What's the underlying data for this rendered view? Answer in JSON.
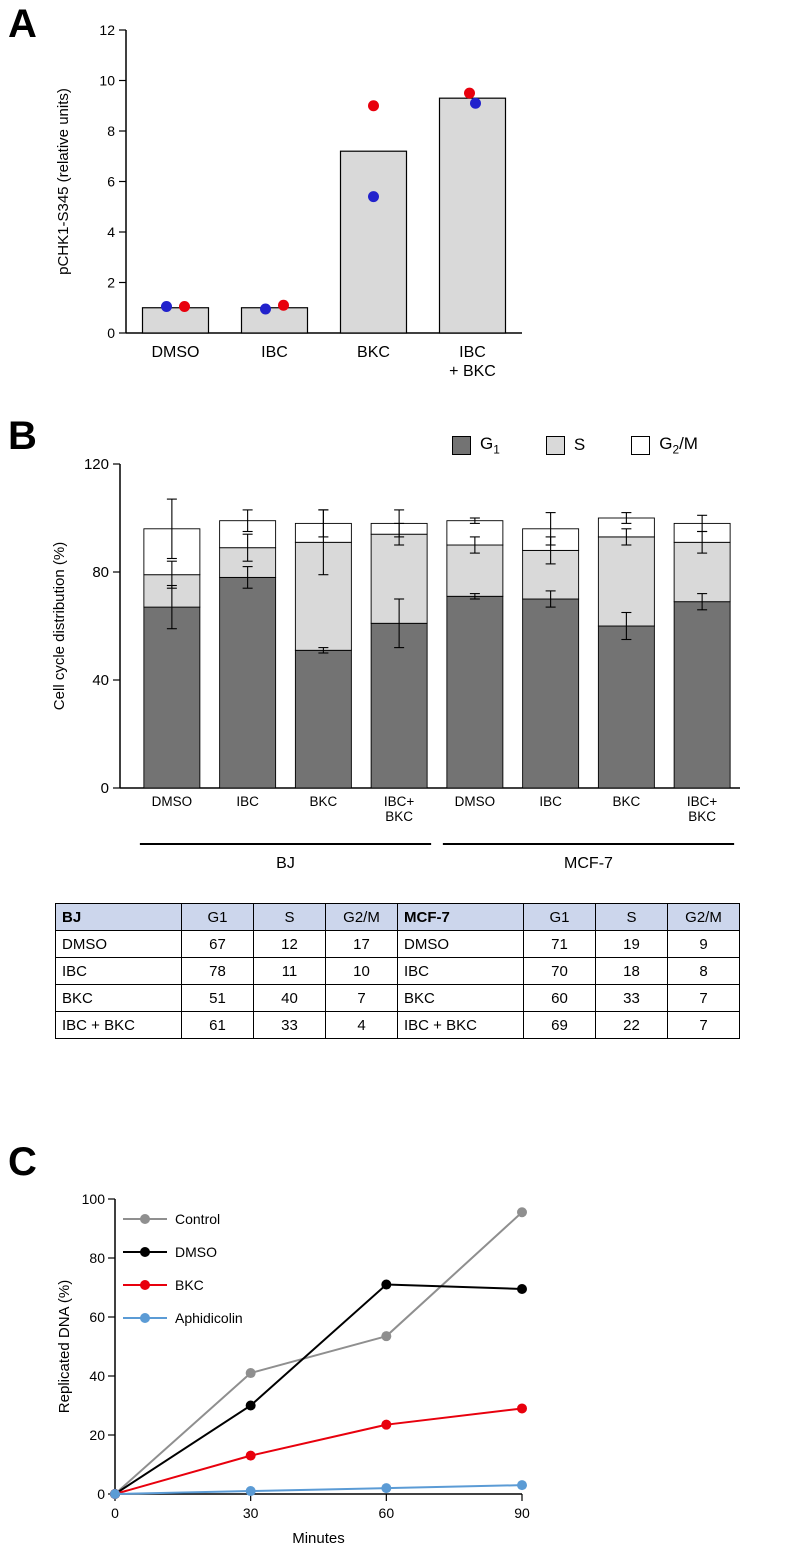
{
  "figure": {
    "panels": {
      "a": {
        "label": "A",
        "chart_data": {
          "type": "bar",
          "ylabel": "pCHK1-S345 (relative units)",
          "ylim": [
            0,
            12
          ],
          "yticks": [
            0,
            2,
            4,
            6,
            8,
            10,
            12
          ],
          "categories": [
            "DMSO",
            "IBC",
            "BKC",
            "IBC\n+ BKC"
          ],
          "values": [
            1.0,
            1.0,
            7.2,
            9.3
          ],
          "bar_color": "#d9d9d9",
          "bar_border": "#000000",
          "points": [
            {
              "cat": 0,
              "color": "#2222cc",
              "value": 1.05,
              "dx": -9
            },
            {
              "cat": 0,
              "color": "#e8000d",
              "value": 1.05,
              "dx": 9
            },
            {
              "cat": 1,
              "color": "#2222cc",
              "value": 0.95,
              "dx": -9
            },
            {
              "cat": 1,
              "color": "#e8000d",
              "value": 1.1,
              "dx": 9
            },
            {
              "cat": 2,
              "color": "#e8000d",
              "value": 9.0,
              "dx": 0
            },
            {
              "cat": 2,
              "color": "#2222cc",
              "value": 5.4,
              "dx": 0
            },
            {
              "cat": 3,
              "color": "#e8000d",
              "value": 9.5,
              "dx": -3
            },
            {
              "cat": 3,
              "color": "#2222cc",
              "value": 9.1,
              "dx": 3
            }
          ]
        }
      },
      "b": {
        "label": "B",
        "legend": {
          "items": [
            {
              "base": "G",
              "sub": "1",
              "rest": "",
              "color": "#737373"
            },
            {
              "base": "S",
              "sub": "",
              "rest": "",
              "color": "#d9d9d9"
            },
            {
              "base": "G",
              "sub": "2",
              "rest": "/M",
              "color": "#ffffff"
            }
          ]
        },
        "chart_data": {
          "type": "stacked-bar",
          "ylabel": "Cell cycle distribution (%)",
          "ylim": [
            0,
            120
          ],
          "yticks": [
            0,
            40,
            80,
            120
          ],
          "segment_names": [
            "G1",
            "S",
            "G2/M"
          ],
          "segment_colors": [
            "#737373",
            "#d9d9d9",
            "#ffffff"
          ],
          "groups": [
            {
              "name": "BJ",
              "categories": [
                "DMSO",
                "IBC",
                "BKC",
                "IBC+\nBKC"
              ],
              "values": [
                [
                  67,
                  12,
                  17
                ],
                [
                  78,
                  11,
                  10
                ],
                [
                  51,
                  40,
                  7
                ],
                [
                  61,
                  33,
                  4
                ]
              ],
              "errors": [
                [
                  8,
                  5,
                  11
                ],
                [
                  4,
                  5,
                  4
                ],
                [
                  1,
                  12,
                  5
                ],
                [
                  9,
                  4,
                  5
                ]
              ]
            },
            {
              "name": "MCF-7",
              "categories": [
                "DMSO",
                "IBC",
                "BKC",
                "IBC+\nBKC"
              ],
              "values": [
                [
                  71,
                  19,
                  9
                ],
                [
                  70,
                  18,
                  8
                ],
                [
                  60,
                  33,
                  7
                ],
                [
                  69,
                  22,
                  7
                ]
              ],
              "errors": [
                [
                  1,
                  3,
                  1
                ],
                [
                  3,
                  5,
                  6
                ],
                [
                  5,
                  3,
                  2
                ],
                [
                  3,
                  4,
                  3
                ]
              ]
            }
          ]
        },
        "table": {
          "header_bg": "#ccd6ec",
          "left": {
            "header": [
              "BJ",
              "G1",
              "S",
              "G2/M"
            ],
            "rows": [
              [
                "DMSO",
                "67",
                "12",
                "17"
              ],
              [
                "IBC",
                "78",
                "11",
                "10"
              ],
              [
                "BKC",
                "51",
                "40",
                "7"
              ],
              [
                "IBC + BKC",
                "61",
                "33",
                "4"
              ]
            ]
          },
          "right": {
            "header": [
              "MCF-7",
              "G1",
              "S",
              "G2/M"
            ],
            "rows": [
              [
                "DMSO",
                "71",
                "19",
                "9"
              ],
              [
                "IBC",
                "70",
                "18",
                "8"
              ],
              [
                "BKC",
                "60",
                "33",
                "7"
              ],
              [
                "IBC + BKC",
                "69",
                "22",
                "7"
              ]
            ]
          }
        }
      },
      "c": {
        "label": "C",
        "chart_data": {
          "type": "line",
          "xlabel": "Minutes",
          "ylabel": "Replicated DNA (%)",
          "xlim": [
            0,
            90
          ],
          "ylim": [
            0,
            100
          ],
          "xticks": [
            0,
            30,
            60,
            90
          ],
          "yticks": [
            0,
            20,
            40,
            60,
            80,
            100
          ],
          "x": [
            0,
            30,
            60,
            90
          ],
          "series": [
            {
              "name": "Control",
              "color": "#8f8f8f",
              "values": [
                0,
                41,
                53.5,
                95.5
              ]
            },
            {
              "name": "DMSO",
              "color": "#000000",
              "values": [
                0,
                30,
                71,
                69.5
              ]
            },
            {
              "name": "BKC",
              "color": "#e8000d",
              "values": [
                0,
                13,
                23.5,
                29
              ]
            },
            {
              "name": "Aphidicolin",
              "color": "#5b9bd5",
              "values": [
                0,
                1,
                2,
                3
              ]
            }
          ]
        }
      }
    }
  }
}
